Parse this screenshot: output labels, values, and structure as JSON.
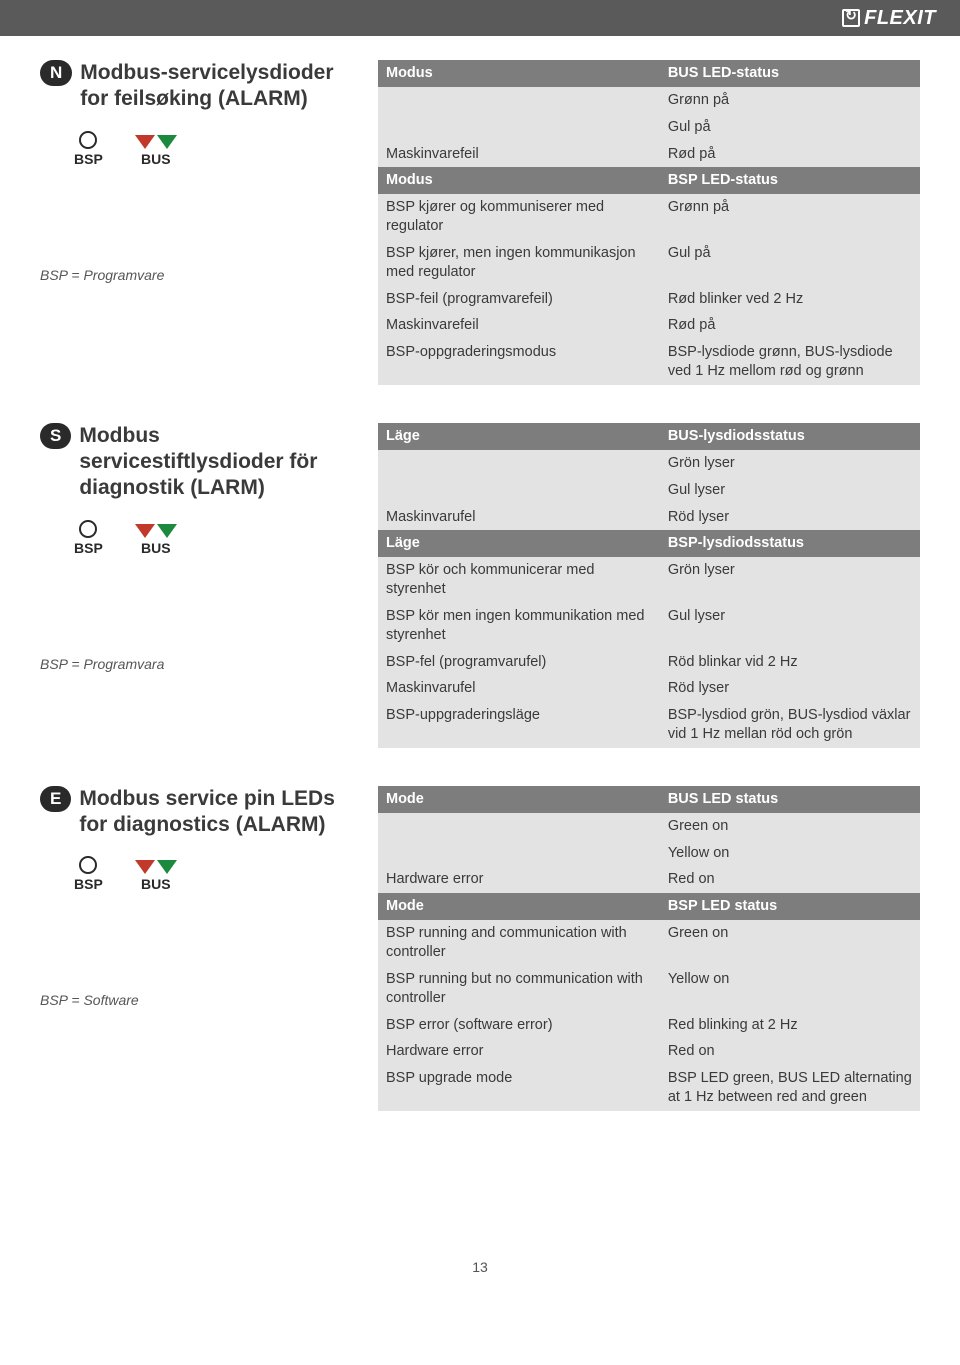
{
  "brand": "FLEXIT",
  "page_number": "13",
  "colors": {
    "header_bg": "#5a5a5a",
    "table_header_bg": "#7d7d7d",
    "row_light": "#e3e3e3",
    "tri_red": "#c1392b",
    "tri_green": "#1b8a3e",
    "text": "#3a3a3a"
  },
  "led_labels": {
    "bsp": "BSP",
    "bus": "BUS"
  },
  "sections": [
    {
      "lang": "N",
      "title": "Modbus-servicelysdioder for feilsøking (ALARM)",
      "footnote": "BSP = Programvare",
      "mode_header": "Modus",
      "status_header_bus": "BUS LED-status",
      "status_header_bsp": "BSP LED-status",
      "rows_top": [
        {
          "mode": "",
          "status": "Grønn på"
        },
        {
          "mode": "",
          "status": "Gul på"
        },
        {
          "mode": "Maskinvarefeil",
          "status": "Rød på"
        }
      ],
      "rows_bottom": [
        {
          "mode": "BSP kjører og kommuniserer med regulator",
          "status": "Grønn på"
        },
        {
          "mode": "BSP kjører, men ingen kommunikasjon med regulator",
          "status": "Gul på"
        },
        {
          "mode": "BSP-feil (programvarefeil)",
          "status": "Rød blinker ved 2 Hz"
        },
        {
          "mode": "Maskinvarefeil",
          "status": "Rød på"
        },
        {
          "mode": "BSP-oppgraderingsmodus",
          "status": "BSP-lysdiode grønn, BUS-lysdiode ved 1 Hz mellom rød og grønn"
        }
      ]
    },
    {
      "lang": "S",
      "title": "Modbus servicestiftlysdioder för diagnostik (LARM)",
      "footnote": "BSP = Programvara",
      "mode_header": "Läge",
      "status_header_bus": "BUS-lysdiodsstatus",
      "status_header_bsp": "BSP-lysdiodsstatus",
      "rows_top": [
        {
          "mode": "",
          "status": "Grön lyser"
        },
        {
          "mode": "",
          "status": "Gul lyser"
        },
        {
          "mode": "Maskinvarufel",
          "status": "Röd lyser"
        }
      ],
      "rows_bottom": [
        {
          "mode": "BSP kör och kommunicerar med styrenhet",
          "status": "Grön lyser"
        },
        {
          "mode": "BSP kör men ingen kommunikation med styrenhet",
          "status": "Gul lyser"
        },
        {
          "mode": "BSP-fel (programvarufel)",
          "status": "Röd blinkar vid 2 Hz"
        },
        {
          "mode": "Maskinvarufel",
          "status": "Röd lyser"
        },
        {
          "mode": "BSP-uppgraderingsläge",
          "status": "BSP-lysdiod grön, BUS-lysdiod växlar vid 1 Hz mellan röd och grön"
        }
      ]
    },
    {
      "lang": "E",
      "title": "Modbus service pin LEDs for diagnostics (ALARM)",
      "footnote": "BSP = Software",
      "mode_header": "Mode",
      "status_header_bus": "BUS LED status",
      "status_header_bsp": "BSP LED status",
      "rows_top": [
        {
          "mode": "",
          "status": "Green on"
        },
        {
          "mode": "",
          "status": "Yellow on"
        },
        {
          "mode": "Hardware error",
          "status": "Red on"
        }
      ],
      "rows_bottom": [
        {
          "mode": "BSP running and communication with controller",
          "status": "Green on"
        },
        {
          "mode": "BSP running but no communication with controller",
          "status": "Yellow on"
        },
        {
          "mode": "BSP error (software error)",
          "status": "Red blinking at 2 Hz"
        },
        {
          "mode": "Hardware error",
          "status": "Red on"
        },
        {
          "mode": "BSP upgrade mode",
          "status": "BSP LED green, BUS LED alternating at 1 Hz between red and green"
        }
      ]
    }
  ]
}
